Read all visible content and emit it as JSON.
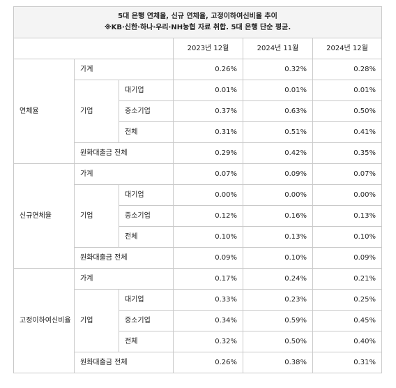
{
  "title_line1": "5대 은행 연체율, 신규 연체율, 고정이하여신비율 추이",
  "title_line2": "※KB·신한·하나·우리·NH농협 자료 취합. 5대 은행 단순 평균.",
  "columns": [
    "2023년 12월",
    "2024년 11월",
    "2024년 12월"
  ],
  "sections": [
    {
      "name": "연체율",
      "household": {
        "label": "가계",
        "values": [
          "0.26%",
          "0.32%",
          "0.28%"
        ]
      },
      "corporate": {
        "label": "기업",
        "rows": [
          {
            "label": "대기업",
            "values": [
              "0.01%",
              "0.01%",
              "0.01%"
            ]
          },
          {
            "label": "중소기업",
            "values": [
              "0.37%",
              "0.63%",
              "0.50%"
            ]
          },
          {
            "label": "전체",
            "values": [
              "0.31%",
              "0.51%",
              "0.41%"
            ]
          }
        ]
      },
      "total": {
        "label": "원화대출금 전체",
        "values": [
          "0.29%",
          "0.42%",
          "0.35%"
        ]
      }
    },
    {
      "name": "신규연체율",
      "household": {
        "label": "가계",
        "values": [
          "0.07%",
          "0.09%",
          "0.07%"
        ]
      },
      "corporate": {
        "label": "기업",
        "rows": [
          {
            "label": "대기업",
            "values": [
              "0.00%",
              "0.00%",
              "0.00%"
            ]
          },
          {
            "label": "중소기업",
            "values": [
              "0.12%",
              "0.16%",
              "0.13%"
            ]
          },
          {
            "label": "전체",
            "values": [
              "0.10%",
              "0.13%",
              "0.10%"
            ]
          }
        ]
      },
      "total": {
        "label": "원화대출금 전체",
        "values": [
          "0.09%",
          "0.10%",
          "0.09%"
        ]
      }
    },
    {
      "name": "고정이하여신비율",
      "household": {
        "label": "가계",
        "values": [
          "0.17%",
          "0.24%",
          "0.21%"
        ]
      },
      "corporate": {
        "label": "기업",
        "rows": [
          {
            "label": "대기업",
            "values": [
              "0.33%",
              "0.23%",
              "0.25%"
            ]
          },
          {
            "label": "중소기업",
            "values": [
              "0.34%",
              "0.59%",
              "0.45%"
            ]
          },
          {
            "label": "전체",
            "values": [
              "0.32%",
              "0.50%",
              "0.40%"
            ]
          }
        ]
      },
      "total": {
        "label": "원화대출금 전체",
        "values": [
          "0.26%",
          "0.38%",
          "0.31%"
        ]
      }
    }
  ]
}
